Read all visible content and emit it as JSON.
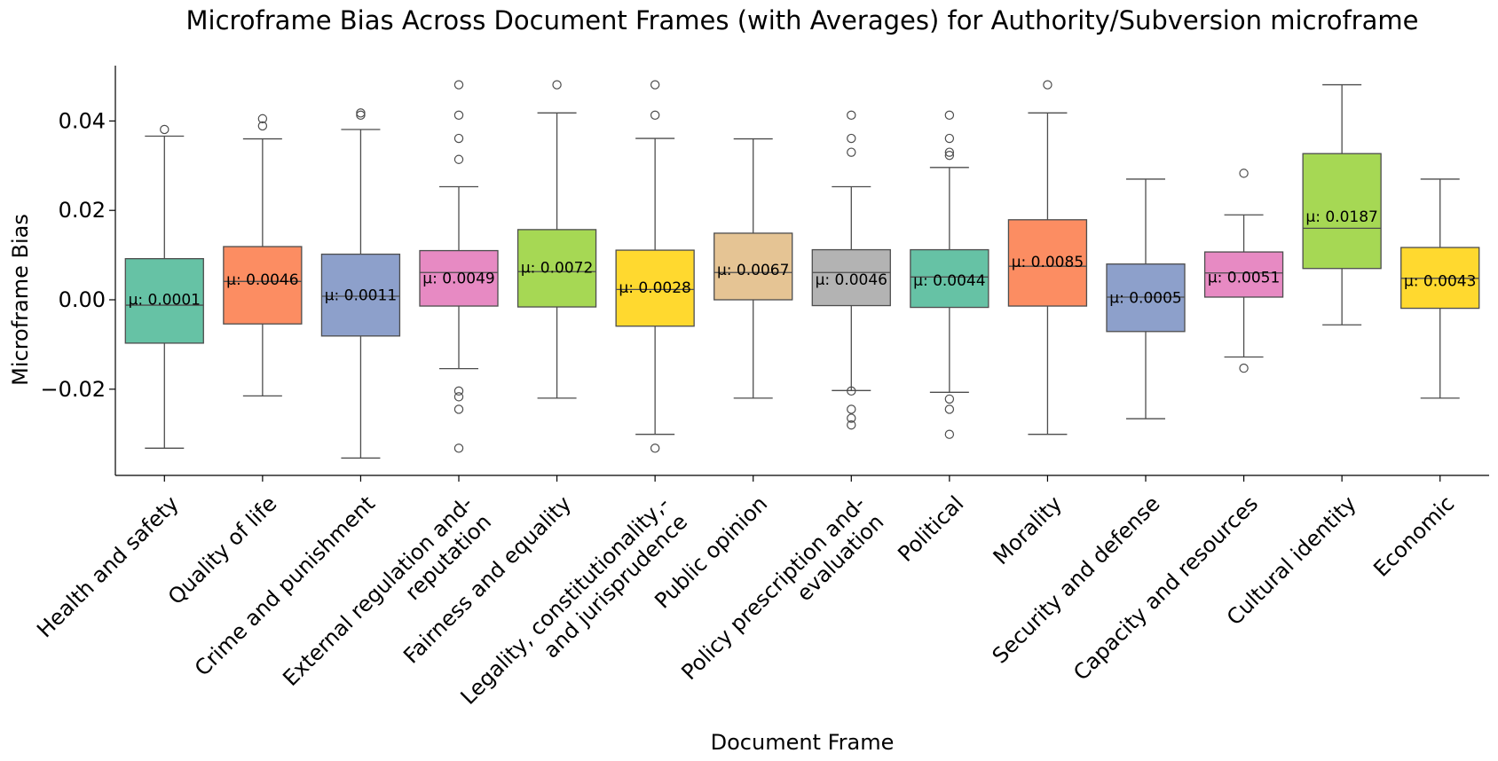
{
  "chart_data": {
    "type": "box",
    "title": "Microframe Bias Across Document Frames (with Averages) for Authority/Subversion microframe",
    "xlabel": "Document Frame",
    "ylabel": "Microframe Bias",
    "yticks": [
      0.04,
      0.02,
      0.0,
      -0.02
    ],
    "ytick_labels": [
      "0.04",
      "0.02",
      "0.00",
      "−0.02"
    ],
    "ylim": [
      -0.04,
      0.052
    ],
    "grid": false,
    "categories": [
      {
        "name": [
          "Health and safety"
        ],
        "color": "#66c2a5",
        "q1": -0.0097,
        "median": -0.0012,
        "q3": 0.0092,
        "whisker_low": -0.0332,
        "whisker_high": 0.0366,
        "outliers": [
          0.0381
        ],
        "mean_label": "μ: 0.0001",
        "mean": 0.0001
      },
      {
        "name": [
          "Quality of life"
        ],
        "color": "#fc8d62",
        "q1": -0.0054,
        "median": 0.0041,
        "q3": 0.0119,
        "whisker_low": -0.0215,
        "whisker_high": 0.036,
        "outliers": [
          0.0389,
          0.0405
        ],
        "mean_label": "μ: 0.0046",
        "mean": 0.0046
      },
      {
        "name": [
          "Crime and punishment"
        ],
        "color": "#8da0cb",
        "q1": -0.0081,
        "median": 0.0008,
        "q3": 0.0102,
        "whisker_low": -0.0354,
        "whisker_high": 0.0381,
        "outliers": [
          0.0413,
          0.0418
        ],
        "mean_label": "μ: 0.0011",
        "mean": 0.0011
      },
      {
        "name": [
          "External regulation and-",
          "reputation"
        ],
        "color": "#e78ac3",
        "q1": -0.0014,
        "median": 0.0061,
        "q3": 0.011,
        "whisker_low": -0.0154,
        "whisker_high": 0.0253,
        "outliers": [
          0.0481,
          0.0413,
          0.0361,
          0.0314,
          -0.0204,
          -0.0217,
          -0.0245,
          -0.0332
        ],
        "mean_label": "μ: 0.0049",
        "mean": 0.0049
      },
      {
        "name": [
          "Fairness and equality"
        ],
        "color": "#a6d854",
        "q1": -0.0016,
        "median": 0.0063,
        "q3": 0.0157,
        "whisker_low": -0.022,
        "whisker_high": 0.0418,
        "outliers": [
          0.0481
        ],
        "mean_label": "μ: 0.0072",
        "mean": 0.0072
      },
      {
        "name": [
          "Legality, constitutionality,-",
          "and jurisprudence"
        ],
        "color": "#ffd92f",
        "q1": -0.0059,
        "median": 0.0023,
        "q3": 0.0111,
        "whisker_low": -0.0301,
        "whisker_high": 0.0361,
        "outliers": [
          0.0481,
          0.0413,
          -0.0332
        ],
        "mean_label": "μ: 0.0028",
        "mean": 0.0028
      },
      {
        "name": [
          "Public opinion"
        ],
        "color": "#e5c494",
        "q1": 0.0,
        "median": 0.0061,
        "q3": 0.0149,
        "whisker_low": -0.022,
        "whisker_high": 0.036,
        "outliers": [],
        "mean_label": "μ: 0.0067",
        "mean": 0.0067
      },
      {
        "name": [
          "Policy prescription and-",
          "evaluation"
        ],
        "color": "#b3b3b3",
        "q1": -0.0013,
        "median": 0.0061,
        "q3": 0.0112,
        "whisker_low": -0.0203,
        "whisker_high": 0.0253,
        "outliers": [
          0.0413,
          0.0361,
          0.033,
          -0.0204,
          -0.0245,
          -0.0265,
          -0.028
        ],
        "mean_label": "μ: 0.0046",
        "mean": 0.0046
      },
      {
        "name": [
          "Political"
        ],
        "color": "#66c2a5",
        "q1": -0.0017,
        "median": 0.0051,
        "q3": 0.0112,
        "whisker_low": -0.0207,
        "whisker_high": 0.0296,
        "outliers": [
          0.0413,
          0.0361,
          0.033,
          0.0323,
          -0.0222,
          -0.0245,
          -0.0301
        ],
        "mean_label": "μ: 0.0044",
        "mean": 0.0044
      },
      {
        "name": [
          "Morality"
        ],
        "color": "#fc8d62",
        "q1": -0.0014,
        "median": 0.0075,
        "q3": 0.0179,
        "whisker_low": -0.0301,
        "whisker_high": 0.0418,
        "outliers": [
          0.0481
        ],
        "mean_label": "μ: 0.0085",
        "mean": 0.0085
      },
      {
        "name": [
          "Security and defense"
        ],
        "color": "#8da0cb",
        "q1": -0.0071,
        "median": 0.0006,
        "q3": 0.008,
        "whisker_low": -0.0266,
        "whisker_high": 0.027,
        "outliers": [],
        "mean_label": "μ: 0.0005",
        "mean": 0.0005
      },
      {
        "name": [
          "Capacity and resources"
        ],
        "color": "#e78ac3",
        "q1": 0.0006,
        "median": 0.006,
        "q3": 0.0107,
        "whisker_low": -0.0128,
        "whisker_high": 0.019,
        "outliers": [
          0.0283,
          -0.0153
        ],
        "mean_label": "μ: 0.0051",
        "mean": 0.0051
      },
      {
        "name": [
          "Cultural identity"
        ],
        "color": "#a6d854",
        "q1": 0.007,
        "median": 0.016,
        "q3": 0.0327,
        "whisker_low": -0.0056,
        "whisker_high": 0.0481,
        "outliers": [],
        "mean_label": "μ: 0.0187",
        "mean": 0.0187
      },
      {
        "name": [
          "Economic"
        ],
        "color": "#ffd92f",
        "q1": -0.0019,
        "median": 0.0048,
        "q3": 0.0117,
        "whisker_low": -0.022,
        "whisker_high": 0.027,
        "outliers": [],
        "mean_label": "μ: 0.0043",
        "mean": 0.0043
      }
    ]
  }
}
